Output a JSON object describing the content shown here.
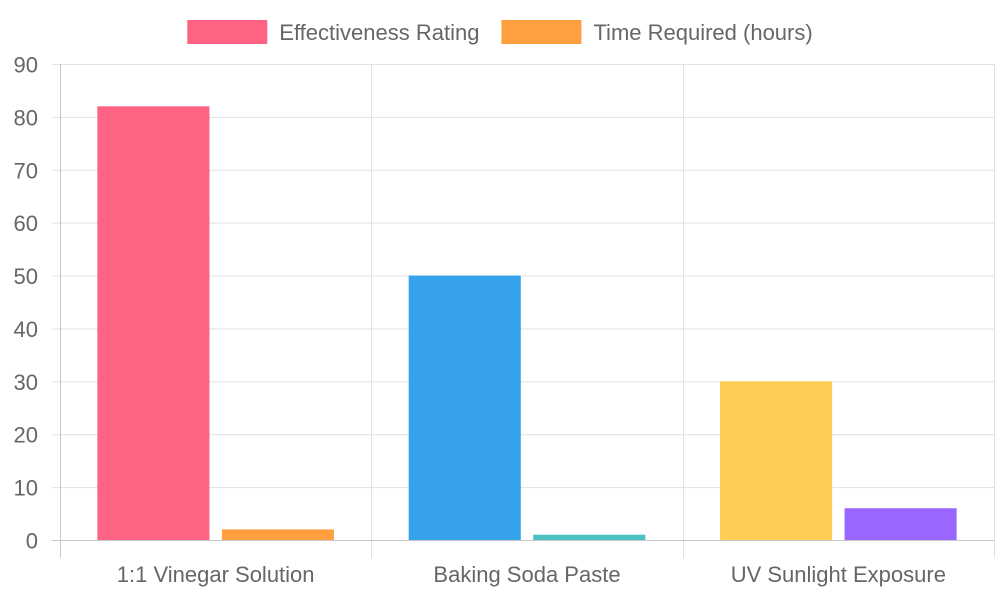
{
  "chart_data": {
    "type": "bar",
    "categories": [
      "1:1 Vinegar Solution",
      "Baking Soda Paste",
      "UV Sunlight Exposure"
    ],
    "series": [
      {
        "name": "Effectiveness Rating",
        "values": [
          82,
          50,
          30
        ],
        "legend_color": "#ff6384",
        "bar_colors": [
          "#ff6384",
          "#36a2eb",
          "#ffcd56"
        ]
      },
      {
        "name": "Time Required (hours)",
        "values": [
          2,
          1,
          6
        ],
        "legend_color": "#ff9f40",
        "bar_colors": [
          "#ff9f40",
          "#4bc0c0",
          "#9966ff"
        ]
      }
    ],
    "ylim": [
      0,
      90
    ],
    "yticks": [
      "0",
      "10",
      "20",
      "30",
      "40",
      "50",
      "60",
      "70",
      "80",
      "90"
    ],
    "grid": true,
    "legend_position": "top-center"
  }
}
